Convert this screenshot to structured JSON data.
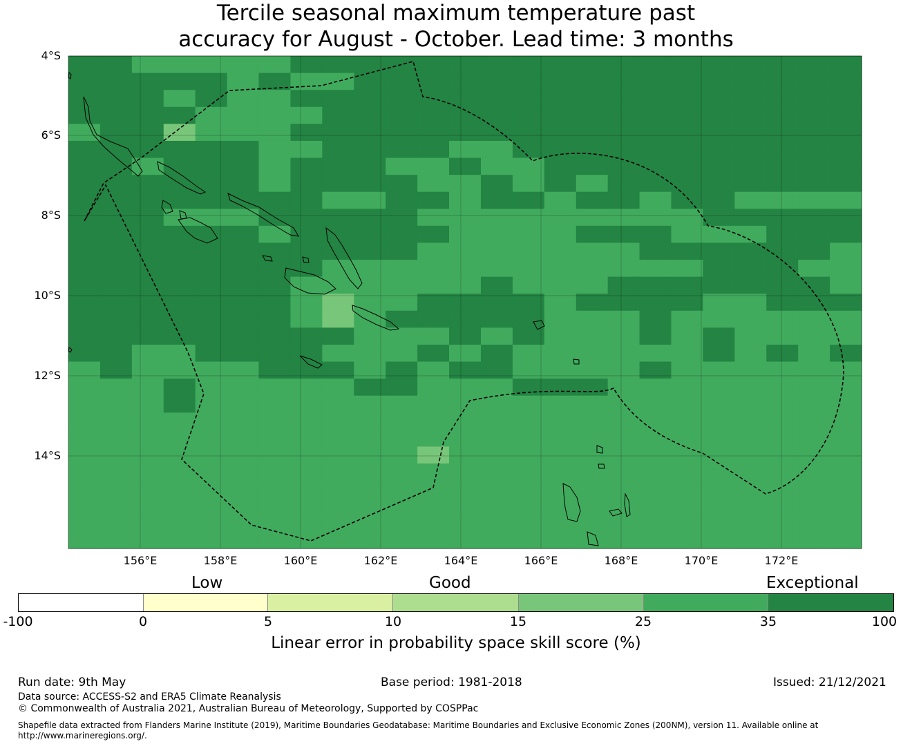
{
  "title": {
    "line1": "Tercile seasonal maximum temperature past",
    "line2": "accuracy for August - October. Lead time: 3 months"
  },
  "map": {
    "lat_labels": [
      "4°S",
      "6°S",
      "8°S",
      "10°S",
      "12°S",
      "14°S"
    ],
    "lon_labels": [
      "156°E",
      "158°E",
      "160°E",
      "162°E",
      "164°E",
      "166°E",
      "168°E",
      "170°E",
      "172°E"
    ],
    "grid_lines": true,
    "eez_boundary_style": "dashed",
    "skill_grid": [
      "3322222333333333333333444",
      "3333323223333333333333333",
      "3432322333333333333333333",
      "3433222233333333333333333",
      "2441222333333333333333333",
      "3343332233332233333333333",
      "3323332333223223333333333",
      "3333332333322323233333333",
      "3333333322332332332332222",
      "3332223333322222222233333",
      "3333332333332222333222333",
      "3333333333322222223333332",
      "3333333322222222222233322",
      "3333333222222322233333332",
      "3333333212233332333322333",
      "3333333212333332223222222",
      "3333333332223232223232222",
      "3322333322232322222232323",
      "2322223332323322223222222",
      "2223222223322233322222222",
      "2223222222222222222222222",
      "2222222222222222222222222",
      "2222222222222222222222222",
      "2222222222212222222222222",
      "2222222222222222222222222",
      "2222222222222222222222222",
      "2222222222222222222222222",
      "2222222222222222222222222",
      "2222222222222222222222222"
    ],
    "skill_legend_index": {
      "1": "15-25",
      "2": "25-35",
      "3": "35-100",
      "4": "35-100"
    }
  },
  "colorbar": {
    "category_labels": [
      "Low",
      "Good",
      "Exceptional"
    ],
    "segments": [
      {
        "range": "-100 to 0",
        "color": "#ffffff"
      },
      {
        "range": "0 to 5",
        "color": "#ffffcc"
      },
      {
        "range": "5 to 10",
        "color": "#d9f0a3"
      },
      {
        "range": "10 to 15",
        "color": "#addd8e"
      },
      {
        "range": "15 to 25",
        "color": "#78c679"
      },
      {
        "range": "25 to 35",
        "color": "#41ab5d"
      },
      {
        "range": "35 to 100",
        "color": "#238443"
      }
    ],
    "ticks": [
      "-100",
      "0",
      "5",
      "10",
      "15",
      "25",
      "35",
      "100"
    ],
    "title": "Linear error in probability space skill score (%)"
  },
  "footer": {
    "run_date": "Run date: 9th May",
    "base_period": "Base period: 1981-2018",
    "issued": "Issued: 21/12/2021",
    "data_source": "Data source: ACCESS-S2 and ERA5 Climate Reanalysis",
    "copyright": "© Commonwealth of Australia 2021, Australian Bureau of Meteorology, Supported by COSPPac",
    "shapefile_note": "Shapefile data extracted from Flanders Marine Institute (2019), Maritime Boundaries Geodatabase: Maritime Boundaries and Exclusive Economic Zones (200NM), version 11. Available online at http://www.marineregions.org/."
  }
}
